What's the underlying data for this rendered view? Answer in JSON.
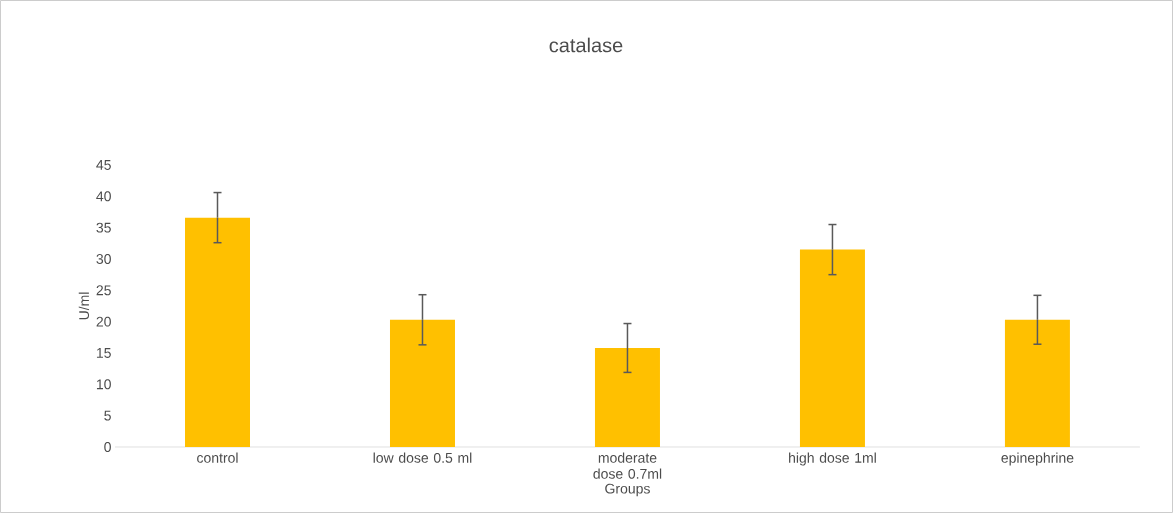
{
  "chart_data": {
    "type": "bar",
    "title": "catalase",
    "xlabel": "Groups",
    "ylabel": "U/ml",
    "categories": [
      "control",
      "low dose 0.5 ml",
      "moderate dose 0.7ml",
      "high dose 1ml",
      "epinephrine"
    ],
    "values": [
      36.6,
      20.3,
      15.8,
      31.5,
      20.3
    ],
    "errors": [
      4,
      4,
      3.9,
      4,
      3.9
    ],
    "color": "#ffc000",
    "ylim": [
      0,
      45
    ],
    "yticks": [
      0,
      5,
      10,
      15,
      20,
      25,
      30,
      35,
      40,
      45
    ],
    "grid": false
  }
}
